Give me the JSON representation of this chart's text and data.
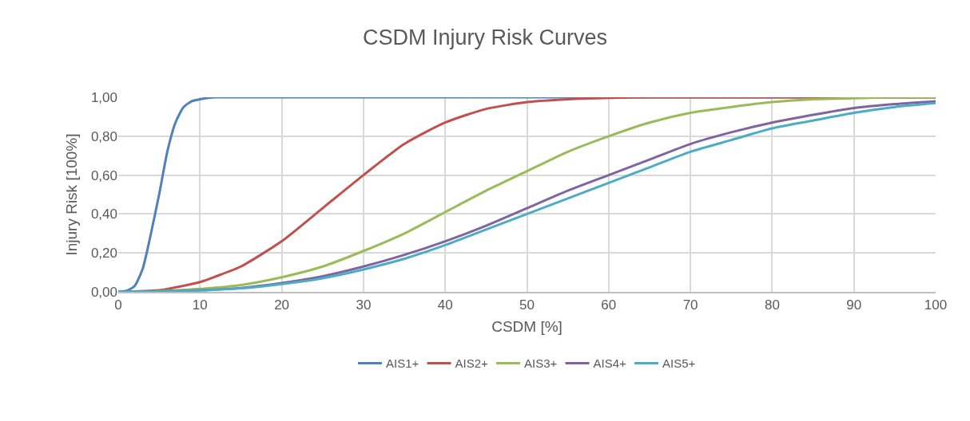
{
  "chart_data": {
    "type": "line",
    "title": "CSDM Injury Risk Curves",
    "xlabel": "CSDM [%]",
    "ylabel": "Injury Risk [100%]",
    "xlim": [
      0,
      100
    ],
    "xticks": [
      0,
      10,
      20,
      30,
      40,
      50,
      60,
      70,
      80,
      90,
      100
    ],
    "ylim": [
      0,
      1
    ],
    "yticks": [
      {
        "value": 0,
        "label": "0,00"
      },
      {
        "value": 0.2,
        "label": "0,20"
      },
      {
        "value": 0.4,
        "label": "0,40"
      },
      {
        "value": 0.6,
        "label": "0,60"
      },
      {
        "value": 0.8,
        "label": "0,80"
      },
      {
        "value": 1,
        "label": "1,00"
      }
    ],
    "grid": true,
    "legend": "bottom",
    "marker": "none",
    "line_style": "solid",
    "series": [
      {
        "name": "AIS1+",
        "color": "#4f81bd",
        "x": [
          0,
          1,
          2,
          3,
          4,
          5,
          6,
          7,
          8,
          9,
          10,
          11,
          12,
          20,
          30,
          50,
          100
        ],
        "values": [
          0,
          0.005,
          0.03,
          0.12,
          0.3,
          0.5,
          0.72,
          0.87,
          0.95,
          0.98,
          0.99,
          0.997,
          1,
          1,
          1,
          1,
          1
        ]
      },
      {
        "name": "AIS2+",
        "color": "#c0504d",
        "x": [
          0,
          5,
          10,
          12,
          15,
          20,
          25,
          30,
          35,
          40,
          45,
          50,
          55,
          60,
          65,
          70,
          100
        ],
        "values": [
          0,
          0.008,
          0.05,
          0.08,
          0.13,
          0.26,
          0.43,
          0.6,
          0.76,
          0.87,
          0.94,
          0.975,
          0.99,
          0.997,
          1,
          1,
          1
        ]
      },
      {
        "name": "AIS3+",
        "color": "#9bbb59",
        "x": [
          0,
          5,
          10,
          15,
          20,
          25,
          30,
          35,
          40,
          45,
          50,
          55,
          60,
          65,
          70,
          75,
          80,
          85,
          90,
          95,
          100
        ],
        "values": [
          0,
          0.003,
          0.015,
          0.035,
          0.075,
          0.13,
          0.21,
          0.3,
          0.41,
          0.52,
          0.62,
          0.72,
          0.8,
          0.87,
          0.92,
          0.95,
          0.975,
          0.99,
          0.995,
          1,
          1
        ]
      },
      {
        "name": "AIS4+",
        "color": "#8064a2",
        "x": [
          0,
          5,
          10,
          15,
          20,
          25,
          30,
          35,
          40,
          45,
          50,
          55,
          60,
          65,
          70,
          75,
          80,
          85,
          90,
          95,
          100
        ],
        "values": [
          0,
          0.002,
          0.008,
          0.02,
          0.045,
          0.08,
          0.13,
          0.19,
          0.26,
          0.34,
          0.43,
          0.52,
          0.6,
          0.68,
          0.76,
          0.82,
          0.87,
          0.91,
          0.945,
          0.965,
          0.98
        ]
      },
      {
        "name": "AIS5+",
        "color": "#4bacc6",
        "x": [
          0,
          5,
          10,
          15,
          20,
          25,
          30,
          35,
          40,
          45,
          50,
          55,
          60,
          65,
          70,
          75,
          80,
          85,
          90,
          95,
          100
        ],
        "values": [
          0,
          0.002,
          0.007,
          0.018,
          0.04,
          0.07,
          0.115,
          0.17,
          0.24,
          0.32,
          0.4,
          0.48,
          0.56,
          0.64,
          0.72,
          0.78,
          0.84,
          0.88,
          0.92,
          0.95,
          0.97
        ]
      }
    ]
  }
}
